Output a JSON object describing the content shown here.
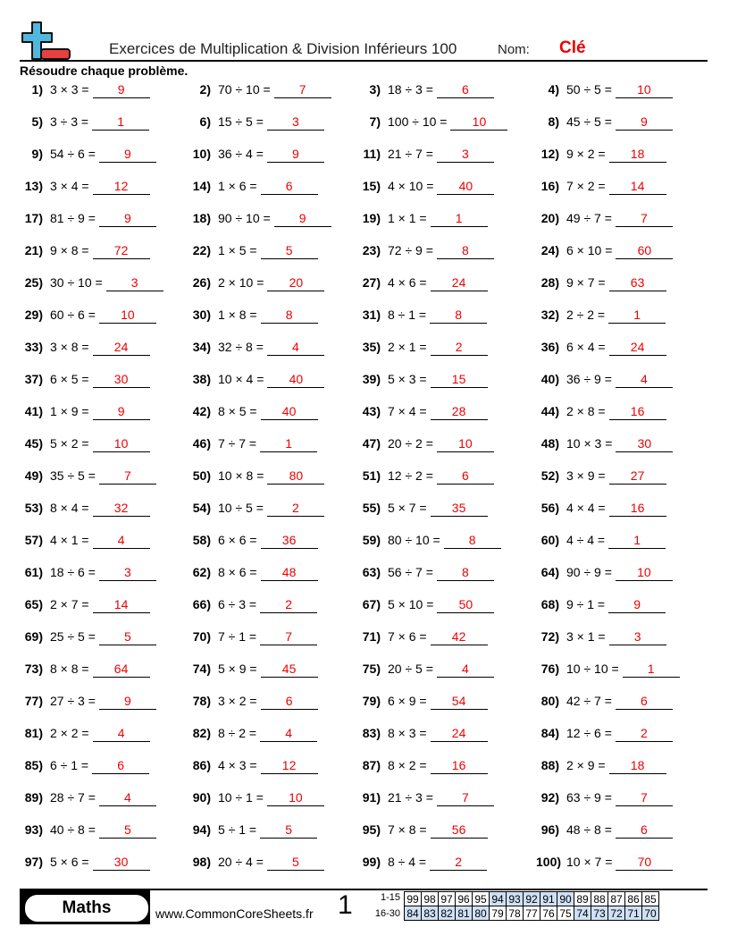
{
  "header": {
    "title": "Exercices de Multiplication & Division Inférieurs 100",
    "name_label": "Nom:",
    "name_value": "Clé",
    "instructions": "Résoudre chaque problème."
  },
  "colors": {
    "answer": "#ee0000",
    "logo_plus": "#4fb8de",
    "logo_minus": "#e84040",
    "score_highlight": "#cfe0f5"
  },
  "problems": [
    {
      "n": "1)",
      "q": "3 × 3 =",
      "a": "9"
    },
    {
      "n": "2)",
      "q": "70 ÷ 10 =",
      "a": "7"
    },
    {
      "n": "3)",
      "q": "18 ÷ 3 =",
      "a": "6"
    },
    {
      "n": "4)",
      "q": "50 ÷ 5 =",
      "a": "10"
    },
    {
      "n": "5)",
      "q": "3 ÷ 3 =",
      "a": "1"
    },
    {
      "n": "6)",
      "q": "15 ÷ 5 =",
      "a": "3"
    },
    {
      "n": "7)",
      "q": "100 ÷ 10 =",
      "a": "10"
    },
    {
      "n": "8)",
      "q": "45 ÷ 5 =",
      "a": "9"
    },
    {
      "n": "9)",
      "q": "54 ÷ 6 =",
      "a": "9"
    },
    {
      "n": "10)",
      "q": "36 ÷ 4 =",
      "a": "9"
    },
    {
      "n": "11)",
      "q": "21 ÷ 7 =",
      "a": "3"
    },
    {
      "n": "12)",
      "q": "9 × 2 =",
      "a": "18"
    },
    {
      "n": "13)",
      "q": "3 × 4 =",
      "a": "12"
    },
    {
      "n": "14)",
      "q": "1 × 6 =",
      "a": "6"
    },
    {
      "n": "15)",
      "q": "4 × 10 =",
      "a": "40"
    },
    {
      "n": "16)",
      "q": "7 × 2 =",
      "a": "14"
    },
    {
      "n": "17)",
      "q": "81 ÷ 9 =",
      "a": "9"
    },
    {
      "n": "18)",
      "q": "90 ÷ 10 =",
      "a": "9"
    },
    {
      "n": "19)",
      "q": "1 × 1 =",
      "a": "1"
    },
    {
      "n": "20)",
      "q": "49 ÷ 7 =",
      "a": "7"
    },
    {
      "n": "21)",
      "q": "9 × 8 =",
      "a": "72"
    },
    {
      "n": "22)",
      "q": "1 × 5 =",
      "a": "5"
    },
    {
      "n": "23)",
      "q": "72 ÷ 9 =",
      "a": "8"
    },
    {
      "n": "24)",
      "q": "6 × 10 =",
      "a": "60"
    },
    {
      "n": "25)",
      "q": "30 ÷ 10 =",
      "a": "3"
    },
    {
      "n": "26)",
      "q": "2 × 10 =",
      "a": "20"
    },
    {
      "n": "27)",
      "q": "4 × 6 =",
      "a": "24"
    },
    {
      "n": "28)",
      "q": "9 × 7 =",
      "a": "63"
    },
    {
      "n": "29)",
      "q": "60 ÷ 6 =",
      "a": "10"
    },
    {
      "n": "30)",
      "q": "1 × 8 =",
      "a": "8"
    },
    {
      "n": "31)",
      "q": "8 ÷ 1 =",
      "a": "8"
    },
    {
      "n": "32)",
      "q": "2 ÷ 2 =",
      "a": "1"
    },
    {
      "n": "33)",
      "q": "3 × 8 =",
      "a": "24"
    },
    {
      "n": "34)",
      "q": "32 ÷ 8 =",
      "a": "4"
    },
    {
      "n": "35)",
      "q": "2 × 1 =",
      "a": "2"
    },
    {
      "n": "36)",
      "q": "6 × 4 =",
      "a": "24"
    },
    {
      "n": "37)",
      "q": "6 × 5 =",
      "a": "30"
    },
    {
      "n": "38)",
      "q": "10 × 4 =",
      "a": "40"
    },
    {
      "n": "39)",
      "q": "5 × 3 =",
      "a": "15"
    },
    {
      "n": "40)",
      "q": "36 ÷ 9 =",
      "a": "4"
    },
    {
      "n": "41)",
      "q": "1 × 9 =",
      "a": "9"
    },
    {
      "n": "42)",
      "q": "8 × 5 =",
      "a": "40"
    },
    {
      "n": "43)",
      "q": "7 × 4 =",
      "a": "28"
    },
    {
      "n": "44)",
      "q": "2 × 8 =",
      "a": "16"
    },
    {
      "n": "45)",
      "q": "5 × 2 =",
      "a": "10"
    },
    {
      "n": "46)",
      "q": "7 ÷ 7 =",
      "a": "1"
    },
    {
      "n": "47)",
      "q": "20 ÷ 2 =",
      "a": "10"
    },
    {
      "n": "48)",
      "q": "10 × 3 =",
      "a": "30"
    },
    {
      "n": "49)",
      "q": "35 ÷ 5 =",
      "a": "7"
    },
    {
      "n": "50)",
      "q": "10 × 8 =",
      "a": "80"
    },
    {
      "n": "51)",
      "q": "12 ÷ 2 =",
      "a": "6"
    },
    {
      "n": "52)",
      "q": "3 × 9 =",
      "a": "27"
    },
    {
      "n": "53)",
      "q": "8 × 4 =",
      "a": "32"
    },
    {
      "n": "54)",
      "q": "10 ÷ 5 =",
      "a": "2"
    },
    {
      "n": "55)",
      "q": "5 × 7 =",
      "a": "35"
    },
    {
      "n": "56)",
      "q": "4 × 4 =",
      "a": "16"
    },
    {
      "n": "57)",
      "q": "4 × 1 =",
      "a": "4"
    },
    {
      "n": "58)",
      "q": "6 × 6 =",
      "a": "36"
    },
    {
      "n": "59)",
      "q": "80 ÷ 10 =",
      "a": "8"
    },
    {
      "n": "60)",
      "q": "4 ÷ 4 =",
      "a": "1"
    },
    {
      "n": "61)",
      "q": "18 ÷ 6 =",
      "a": "3"
    },
    {
      "n": "62)",
      "q": "8 × 6 =",
      "a": "48"
    },
    {
      "n": "63)",
      "q": "56 ÷ 7 =",
      "a": "8"
    },
    {
      "n": "64)",
      "q": "90 ÷ 9 =",
      "a": "10"
    },
    {
      "n": "65)",
      "q": "2 × 7 =",
      "a": "14"
    },
    {
      "n": "66)",
      "q": "6 ÷ 3 =",
      "a": "2"
    },
    {
      "n": "67)",
      "q": "5 × 10 =",
      "a": "50"
    },
    {
      "n": "68)",
      "q": "9 ÷ 1 =",
      "a": "9"
    },
    {
      "n": "69)",
      "q": "25 ÷ 5 =",
      "a": "5"
    },
    {
      "n": "70)",
      "q": "7 ÷ 1 =",
      "a": "7"
    },
    {
      "n": "71)",
      "q": "7 × 6 =",
      "a": "42"
    },
    {
      "n": "72)",
      "q": "3 × 1 =",
      "a": "3"
    },
    {
      "n": "73)",
      "q": "8 × 8 =",
      "a": "64"
    },
    {
      "n": "74)",
      "q": "5 × 9 =",
      "a": "45"
    },
    {
      "n": "75)",
      "q": "20 ÷ 5 =",
      "a": "4"
    },
    {
      "n": "76)",
      "q": "10 ÷ 10 =",
      "a": "1"
    },
    {
      "n": "77)",
      "q": "27 ÷ 3 =",
      "a": "9"
    },
    {
      "n": "78)",
      "q": "3 × 2 =",
      "a": "6"
    },
    {
      "n": "79)",
      "q": "6 × 9 =",
      "a": "54"
    },
    {
      "n": "80)",
      "q": "42 ÷ 7 =",
      "a": "6"
    },
    {
      "n": "81)",
      "q": "2 × 2 =",
      "a": "4"
    },
    {
      "n": "82)",
      "q": "8 ÷ 2 =",
      "a": "4"
    },
    {
      "n": "83)",
      "q": "8 × 3 =",
      "a": "24"
    },
    {
      "n": "84)",
      "q": "12 ÷ 6 =",
      "a": "2"
    },
    {
      "n": "85)",
      "q": "6 ÷ 1 =",
      "a": "6"
    },
    {
      "n": "86)",
      "q": "4 × 3 =",
      "a": "12"
    },
    {
      "n": "87)",
      "q": "8 × 2 =",
      "a": "16"
    },
    {
      "n": "88)",
      "q": "2 × 9 =",
      "a": "18"
    },
    {
      "n": "89)",
      "q": "28 ÷ 7 =",
      "a": "4"
    },
    {
      "n": "90)",
      "q": "10 ÷ 1 =",
      "a": "10"
    },
    {
      "n": "91)",
      "q": "21 ÷ 3 =",
      "a": "7"
    },
    {
      "n": "92)",
      "q": "63 ÷ 9 =",
      "a": "7"
    },
    {
      "n": "93)",
      "q": "40 ÷ 8 =",
      "a": "5"
    },
    {
      "n": "94)",
      "q": "5 ÷ 1 =",
      "a": "5"
    },
    {
      "n": "95)",
      "q": "7 × 8 =",
      "a": "56"
    },
    {
      "n": "96)",
      "q": "48 ÷ 8 =",
      "a": "6"
    },
    {
      "n": "97)",
      "q": "5 × 6 =",
      "a": "30"
    },
    {
      "n": "98)",
      "q": "20 ÷ 4 =",
      "a": "5"
    },
    {
      "n": "99)",
      "q": "8 ÷ 4 =",
      "a": "2"
    },
    {
      "n": "100)",
      "q": "10 × 7 =",
      "a": "70"
    }
  ],
  "footer": {
    "subject": "Maths",
    "website": "www.CommonCoreSheets.fr",
    "page": "1",
    "score_rows": [
      {
        "label": "1-15",
        "cells": [
          "99",
          "98",
          "97",
          "96",
          "95",
          "94",
          "93",
          "92",
          "91",
          "90",
          "89",
          "88",
          "87",
          "86",
          "85"
        ],
        "highlight": [
          false,
          false,
          false,
          false,
          false,
          true,
          true,
          true,
          true,
          true,
          false,
          false,
          false,
          false,
          false
        ]
      },
      {
        "label": "16-30",
        "cells": [
          "84",
          "83",
          "82",
          "81",
          "80",
          "79",
          "78",
          "77",
          "76",
          "75",
          "74",
          "73",
          "72",
          "71",
          "70"
        ],
        "highlight": [
          true,
          true,
          true,
          true,
          true,
          false,
          false,
          false,
          false,
          false,
          true,
          true,
          true,
          true,
          true
        ]
      }
    ]
  }
}
